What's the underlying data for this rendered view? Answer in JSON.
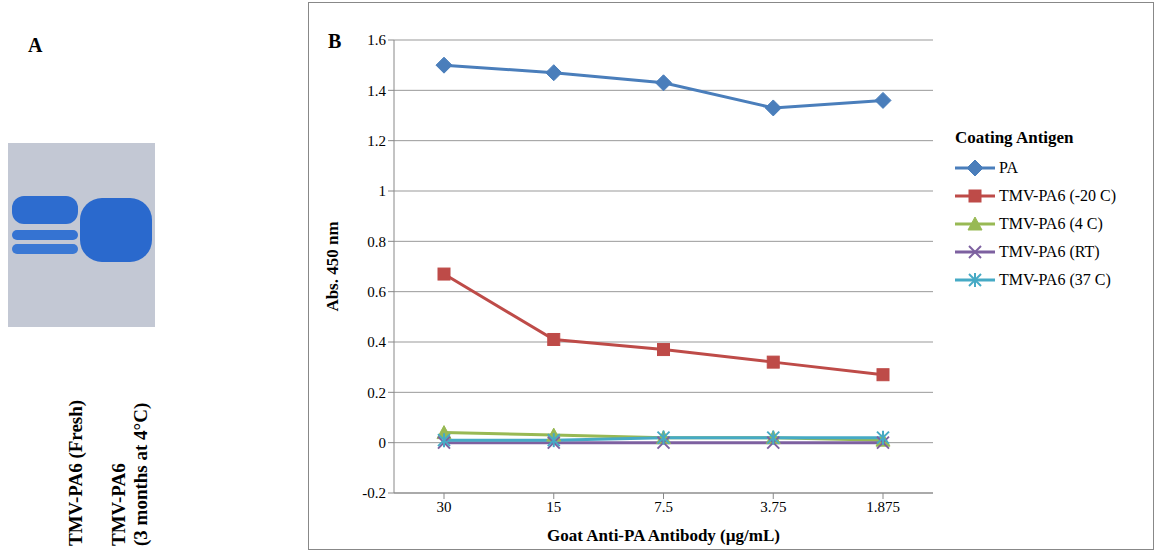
{
  "gel": {
    "panel_label": "A",
    "lanes": [
      [
        "TMV-PA6 (Fresh)"
      ],
      [
        "TMV-PA6",
        "(3 months at 4°C)"
      ]
    ]
  },
  "chart_data": {
    "panel_label": "B",
    "type": "line",
    "x_label": "Goat Anti-PA Antibody (µg/mL)",
    "y_label": "Abs. 450 nm",
    "categories": [
      "30",
      "15",
      "7.5",
      "3.75",
      "1.875"
    ],
    "series": [
      {
        "name": "PA",
        "color": "#4a7ebb",
        "marker": "diamond",
        "values": [
          1.5,
          1.47,
          1.43,
          1.33,
          1.36
        ]
      },
      {
        "name": "TMV-PA6 (-20 C)",
        "color": "#be4b48",
        "marker": "square",
        "values": [
          0.67,
          0.41,
          0.37,
          0.32,
          0.27
        ]
      },
      {
        "name": "TMV-PA6 (4 C)",
        "color": "#98b954",
        "marker": "triangle",
        "values": [
          0.04,
          0.03,
          0.02,
          0.02,
          0.01
        ]
      },
      {
        "name": "TMV-PA6 (RT)",
        "color": "#7d60a0",
        "marker": "x",
        "values": [
          0,
          0,
          0,
          0,
          0
        ]
      },
      {
        "name": "TMV-PA6 (37 C)",
        "color": "#46aac5",
        "marker": "star",
        "values": [
          0.01,
          0.01,
          0.02,
          0.02,
          0.02
        ]
      }
    ],
    "ylim": [
      -0.2,
      1.6
    ],
    "yticks": [
      -0.2,
      0,
      0.2,
      0.4,
      0.6,
      0.8,
      1,
      1.2,
      1.4,
      1.6
    ],
    "grid": true,
    "legend": "right",
    "legend_title": "Coating Antigen"
  }
}
